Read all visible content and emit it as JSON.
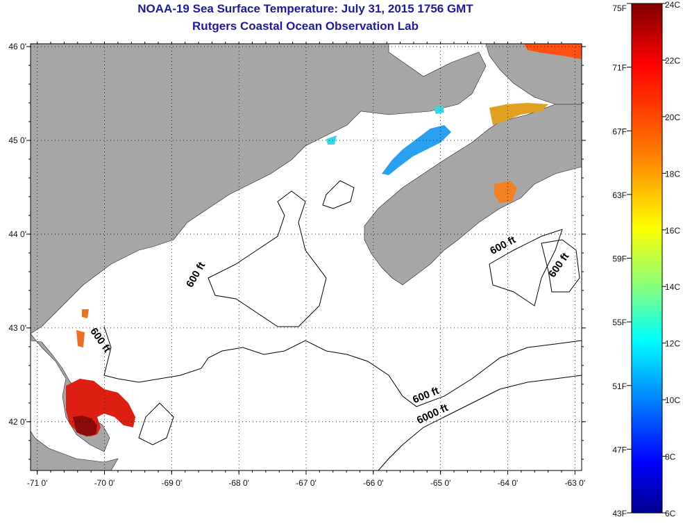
{
  "header": {
    "title": "NOAA-19 Sea Surface Temperature:  July 31, 2015 1756 GMT",
    "subtitle": "Rutgers Coastal Ocean Observation Lab"
  },
  "map": {
    "lon_range": [
      -71.1,
      -62.9
    ],
    "lat_range": [
      41.48,
      46.03
    ],
    "lon_ticks": [
      -71,
      -70,
      -69,
      -68,
      -67,
      -66,
      -65,
      -64,
      -63
    ],
    "lon_tick_labels": [
      "-71 0'",
      "-70 0'",
      "-69 0'",
      "-68 0'",
      "-67 0'",
      "-66 0'",
      "-65 0'",
      "-64 0'",
      "-63 0'"
    ],
    "lat_ticks": [
      46,
      45,
      44,
      43,
      42
    ],
    "lat_tick_labels": [
      "46 0'",
      "45 0'",
      "44 0'",
      "43 0'",
      "42 0'"
    ],
    "grid": "dotted",
    "land_color": "#a6a6a6",
    "contour_labels": [
      {
        "text": "600 ft",
        "lon": -68.6,
        "lat": 43.55,
        "rot": -60
      },
      {
        "text": "600 ft",
        "lon": -70.1,
        "lat": 42.85,
        "rot": 55
      },
      {
        "text": "600 ft",
        "lon": -64.05,
        "lat": 43.85,
        "rot": -28
      },
      {
        "text": "600 ft",
        "lon": -63.2,
        "lat": 43.65,
        "rot": -55
      },
      {
        "text": "600 ft",
        "lon": -65.2,
        "lat": 42.25,
        "rot": -22
      },
      {
        "text": "6000 ft",
        "lon": -65.1,
        "lat": 42.05,
        "rot": -25
      }
    ]
  },
  "colorbar": {
    "fahrenheit_labels": [
      "75F",
      "71F",
      "67F",
      "63F",
      "59F",
      "55F",
      "51F",
      "47F",
      "43F"
    ],
    "celsius_labels": [
      "24C",
      "22C",
      "20C",
      "18C",
      "16C",
      "14C",
      "12C",
      "10C",
      "8C",
      "6C"
    ],
    "colors": [
      "#7f0000",
      "#ff0000",
      "#ff8000",
      "#ffff00",
      "#80ff80",
      "#00ffff",
      "#0080ff",
      "#0000ff",
      "#00008f"
    ]
  }
}
